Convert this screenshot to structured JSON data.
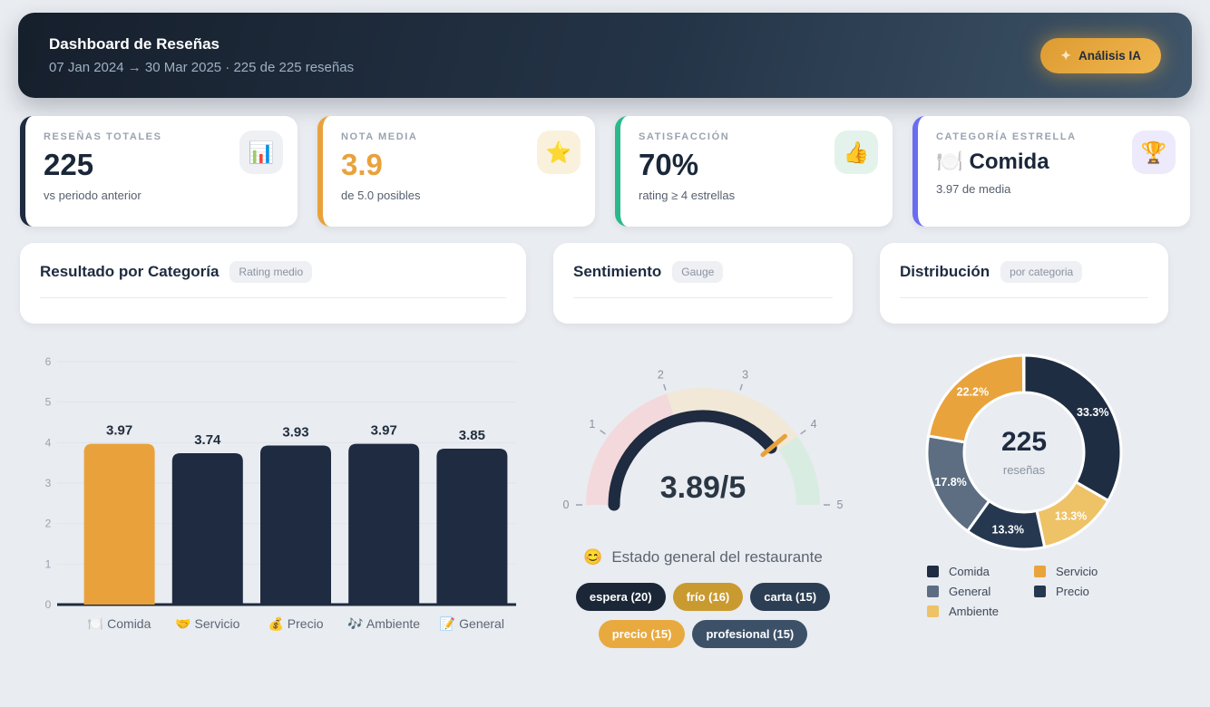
{
  "header": {
    "title": "Dashboard de Reseñas",
    "subtitle": "07 Jan 2024 → 30 Mar 2025 · 225 de 225 reseñas",
    "ai_button": {
      "icon_glyph": "✦",
      "label": "Análisis IA"
    }
  },
  "kpis": [
    {
      "label": "RESEÑAS TOTALES",
      "value": "225",
      "sub": "vs periodo anterior",
      "icon": "bar-chart-emoji",
      "icon_glyph": "📊",
      "accent": "#1e2b40",
      "icon_bg": "#eef0f3"
    },
    {
      "label": "NOTA MEDIA",
      "value": "3.9",
      "sub": "de 5.0 posibles",
      "icon": "star-emoji",
      "icon_glyph": "⭐",
      "accent": "#e9a23b",
      "icon_bg": "#faf1dd",
      "value_color": "#e9a23b"
    },
    {
      "label": "SATISFACCIÓN",
      "value": "70%",
      "sub": "rating ≥ 4 estrellas",
      "icon": "thumbs-up-emoji",
      "icon_glyph": "👍",
      "accent": "#2bb98b",
      "icon_bg": "#e3f3eb"
    },
    {
      "label": "CATEGORÍA ESTRELLA",
      "value": "🍽️ Comida",
      "sub": "3.97 de media",
      "icon": "trophy-emoji",
      "icon_glyph": "🏆",
      "accent": "#6a6cf0",
      "icon_bg": "#eceafb"
    }
  ],
  "panels": [
    {
      "title": "Resultado por Categoría",
      "badge": "Rating medio"
    },
    {
      "title": "Sentimiento",
      "badge": "Gauge"
    },
    {
      "title": "Distribución",
      "badge": "por categoria"
    }
  ],
  "chart_data": [
    {
      "type": "bar",
      "title": "Resultado por Categoría",
      "categories": [
        "Comida",
        "Servicio",
        "Precio",
        "Ambiente",
        "General"
      ],
      "category_icons": [
        "🍽️",
        "🤝",
        "💰",
        "🎶",
        "📝"
      ],
      "values": [
        3.97,
        3.74,
        3.93,
        3.97,
        3.85
      ],
      "value_labels": [
        "3.97",
        "3.74",
        "3.93",
        "3.97",
        "3.85"
      ],
      "bar_colors": [
        "#e9a23b",
        "#1e2b40",
        "#1e2b40",
        "#1e2b40",
        "#1e2b40"
      ],
      "xlabel": "",
      "ylabel": "",
      "ylim": [
        0,
        6
      ],
      "yticks": [
        0,
        1,
        2,
        3,
        4,
        5,
        6
      ],
      "grid": true
    },
    {
      "type": "gauge",
      "title": "Sentimiento",
      "value": 3.89,
      "max": 5,
      "display": "3.89/5",
      "ticks": [
        0,
        1,
        2,
        3,
        4,
        5
      ],
      "zones": [
        {
          "from": 0,
          "to": 2,
          "color": "#f3d9dc"
        },
        {
          "from": 2,
          "to": 4,
          "color": "#f1e8d7"
        },
        {
          "from": 4,
          "to": 5,
          "color": "#d9ece2"
        }
      ],
      "arc_color": "#1e2b40",
      "marker_color": "#e9a23b"
    },
    {
      "type": "donut",
      "title": "Distribución",
      "center_value": "225",
      "center_label": "reseñas",
      "slices": [
        {
          "label": "Comida",
          "pct": 33.3,
          "color": "#1e2d42"
        },
        {
          "label": "Ambiente",
          "pct": 13.3,
          "color": "#eec266"
        },
        {
          "label": "Precio",
          "pct": 13.3,
          "color": "#263850"
        },
        {
          "label": "General",
          "pct": 17.8,
          "color": "#5d6e82"
        },
        {
          "label": "Servicio",
          "pct": 22.2,
          "color": "#e9a33c"
        }
      ],
      "legend_order": [
        "Comida",
        "Servicio",
        "General",
        "Precio",
        "Ambiente"
      ],
      "legend_position": "bottom"
    }
  ],
  "sentiment": {
    "emoji": "😊",
    "status_text": "Estado general del restaurante",
    "tags": [
      {
        "label": "espera (20)",
        "color": "#1b2737"
      },
      {
        "label": "frío (16)",
        "color": "#c99a30"
      },
      {
        "label": "carta (15)",
        "color": "#2c3e54"
      },
      {
        "label": "precio (15)",
        "color": "#e8a93f"
      },
      {
        "label": "profesional (15)",
        "color": "#3c5168"
      }
    ]
  }
}
